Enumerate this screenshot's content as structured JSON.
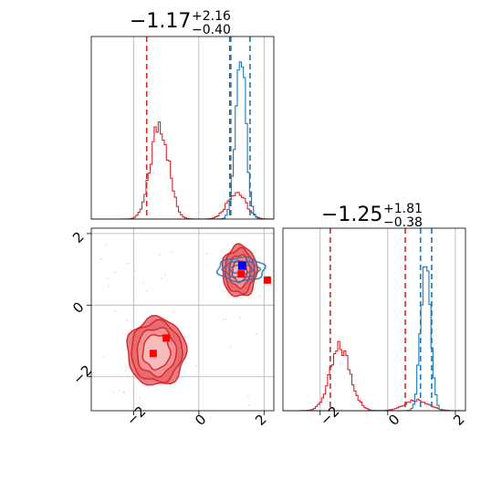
{
  "colors": {
    "red": "#d62728",
    "blue": "#1f77b4",
    "grid": "#b0b0b0",
    "axis": "#000000"
  },
  "chart_data": [
    {
      "type": "histogram",
      "panel": "top-left",
      "title": {
        "main": "−1.17",
        "sup": "+2.16",
        "sub": "−0.40"
      },
      "xlim": [
        -3.3,
        2.3
      ],
      "grid": true,
      "xticks": [
        -2,
        0,
        2
      ],
      "series": [
        {
          "color": "#d62728",
          "components": [
            {
              "mean": -1.2,
              "sd": 0.27,
              "height": 0.53
            },
            {
              "mean": 1.15,
              "sd": 0.28,
              "height": 0.15
            }
          ]
        },
        {
          "color": "#1f77b4",
          "components": [
            {
              "mean": 1.28,
              "sd": 0.16,
              "height": 0.9
            }
          ]
        }
      ],
      "vlines": [
        {
          "x": -1.6,
          "color": "#d62728"
        },
        {
          "x": 0.95,
          "color": "#d62728"
        },
        {
          "x": 0.98,
          "color": "#1f77b4"
        },
        {
          "x": 1.57,
          "color": "#1f77b4"
        }
      ]
    },
    {
      "type": "contour",
      "panel": "bottom-left",
      "xlim": [
        -3.3,
        2.3
      ],
      "ylim": [
        -2.95,
        2.15
      ],
      "grid": true,
      "xticks": [
        -2,
        0,
        2
      ],
      "yticks": [
        -2,
        0,
        2
      ],
      "xtick_labels": [
        "−2",
        "0",
        "2"
      ],
      "ytick_labels": [
        "−2",
        "0",
        "2"
      ],
      "series": [
        {
          "color": "#d62728",
          "blobs": [
            {
              "cx": -1.3,
              "cy": -1.3,
              "rx": [
                0.42,
                0.6,
                0.78,
                0.9
              ],
              "ry": [
                0.48,
                0.66,
                0.84,
                0.95
              ]
            },
            {
              "cx": 1.25,
              "cy": 0.95,
              "rx": [
                0.22,
                0.32,
                0.45,
                0.53
              ],
              "ry": [
                0.3,
                0.45,
                0.62,
                0.72
              ]
            }
          ],
          "markers": [
            {
              "x": -1.4,
              "y": -1.35
            },
            {
              "x": -1.0,
              "y": -0.92
            },
            {
              "x": 1.3,
              "y": 0.87
            },
            {
              "x": 2.1,
              "y": 0.7
            }
          ]
        },
        {
          "color": "#1f77b4",
          "blobs": [
            {
              "cx": 1.3,
              "cy": 1.0,
              "rx": [
                0.35,
                0.55,
                0.72
              ],
              "ry": [
                0.12,
                0.22,
                0.33
              ]
            }
          ],
          "markers": [
            {
              "x": 1.33,
              "y": 1.1
            }
          ]
        }
      ]
    },
    {
      "type": "histogram",
      "panel": "bottom-right",
      "title": {
        "main": "−1.25",
        "sup": "+1.81",
        "sub": "−0.38"
      },
      "xlim": [
        -3.1,
        2.3
      ],
      "grid": true,
      "xticks": [
        -2,
        0,
        2
      ],
      "xtick_labels": [
        "−2",
        "0",
        "2"
      ],
      "series": [
        {
          "color": "#d62728",
          "components": [
            {
              "mean": -1.4,
              "sd": 0.3,
              "height": 0.34
            },
            {
              "mean": 0.85,
              "sd": 0.35,
              "height": 0.06
            }
          ]
        },
        {
          "color": "#1f77b4",
          "components": [
            {
              "mean": 1.12,
              "sd": 0.14,
              "height": 0.9
            }
          ]
        }
      ],
      "vlines": [
        {
          "x": -1.7,
          "color": "#d62728"
        },
        {
          "x": 0.52,
          "color": "#d62728"
        },
        {
          "x": 0.97,
          "color": "#1f77b4"
        },
        {
          "x": 1.3,
          "color": "#1f77b4"
        }
      ]
    }
  ]
}
